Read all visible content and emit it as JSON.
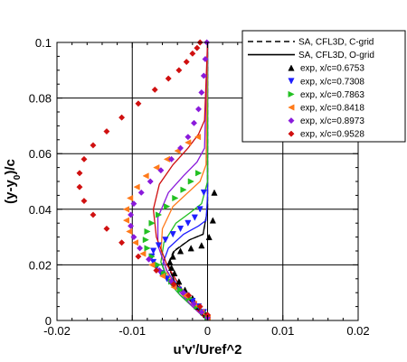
{
  "chart_data": {
    "type": "scatter",
    "title": "",
    "xlabel": "u'v'/Uref^2",
    "ylabel": "(y-y0)/c",
    "xlim": [
      -0.02,
      0.02
    ],
    "ylim": [
      0,
      0.1
    ],
    "x_ticks": [
      "-0.02",
      "-0.01",
      "0",
      "0.01",
      "0.02"
    ],
    "y_ticks": [
      "0",
      "0.02",
      "0.04",
      "0.06",
      "0.08",
      "0.1"
    ],
    "grid": true,
    "legend_position": "top-right",
    "curve_colors": [
      "#000000",
      "#1e1eff",
      "#22c022",
      "#ff7a1a",
      "#8a1adb",
      "#d01010"
    ],
    "legend": [
      {
        "label": "SA, CFL3D, C-grid",
        "style": "dashed",
        "color": "#000000"
      },
      {
        "label": "SA, CFL3D, O-grid",
        "style": "solid",
        "color": "#000000"
      },
      {
        "label": "exp, x/c=0.6753",
        "marker": "triangle-up",
        "color": "#000000"
      },
      {
        "label": "exp, x/c=0.7308",
        "marker": "triangle-down",
        "color": "#1e1eff"
      },
      {
        "label": "exp, x/c=0.7863",
        "marker": "triangle-right",
        "color": "#22c022"
      },
      {
        "label": "exp, x/c=0.8418",
        "marker": "triangle-left",
        "color": "#ff7a1a"
      },
      {
        "label": "exp, x/c=0.8973",
        "marker": "diamond",
        "color": "#8a1adb"
      },
      {
        "label": "exp, x/c=0.9528",
        "marker": "diamond",
        "color": "#d01010"
      }
    ],
    "series": [
      {
        "name": "exp, x/c=0.6753",
        "marker": "triangle-up",
        "color": "#000000",
        "x": [
          0,
          -0.0002,
          -0.0006,
          -0.0012,
          -0.002,
          -0.003,
          -0.0038,
          -0.0044,
          -0.0048,
          -0.005,
          -0.0046,
          -0.0036,
          -0.0022,
          -0.0008,
          0.0002,
          0.0007,
          0.0009
        ],
        "y": [
          0.001,
          0.002,
          0.003,
          0.005,
          0.008,
          0.011,
          0.014,
          0.017,
          0.019,
          0.021,
          0.023,
          0.025,
          0.026,
          0.027,
          0.03,
          0.036,
          0.046
        ]
      },
      {
        "name": "exp, x/c=0.7308",
        "marker": "triangle-down",
        "color": "#1e1eff",
        "x": [
          0,
          -0.0005,
          -0.0012,
          -0.002,
          -0.0028,
          -0.0038,
          -0.0046,
          -0.0054,
          -0.0062,
          -0.0068,
          -0.0072,
          -0.0074,
          -0.0072,
          -0.0065,
          -0.0056,
          -0.0046,
          -0.0036,
          -0.0026,
          -0.0017,
          -0.001,
          -0.0005
        ],
        "y": [
          0.001,
          0.003,
          0.005,
          0.007,
          0.009,
          0.011,
          0.013,
          0.015,
          0.017,
          0.019,
          0.021,
          0.023,
          0.025,
          0.027,
          0.029,
          0.031,
          0.033,
          0.035,
          0.037,
          0.04,
          0.046
        ]
      },
      {
        "name": "exp, x/c=0.7863",
        "marker": "triangle-right",
        "color": "#22c022",
        "x": [
          0,
          -0.0006,
          -0.0014,
          -0.0024,
          -0.0036,
          -0.0048,
          -0.0058,
          -0.0066,
          -0.0074,
          -0.008,
          -0.0082,
          -0.008,
          -0.0074,
          -0.0065,
          -0.0054,
          -0.0043,
          -0.0032,
          -0.0022,
          -0.0012
        ],
        "y": [
          0.001,
          0.003,
          0.005,
          0.008,
          0.011,
          0.014,
          0.017,
          0.02,
          0.023,
          0.026,
          0.029,
          0.032,
          0.035,
          0.038,
          0.041,
          0.044,
          0.047,
          0.05,
          0.053
        ]
      },
      {
        "name": "exp, x/c=0.8418",
        "marker": "triangle-left",
        "color": "#ff7a1a",
        "x": [
          0,
          -0.0008,
          -0.0018,
          -0.003,
          -0.0045,
          -0.006,
          -0.0074,
          -0.0086,
          -0.0096,
          -0.0104,
          -0.0108,
          -0.0108,
          -0.0103,
          -0.0094,
          -0.0082,
          -0.0068,
          -0.0054,
          -0.004,
          -0.0026,
          -0.0013
        ],
        "y": [
          0.001,
          0.003,
          0.006,
          0.009,
          0.012,
          0.016,
          0.02,
          0.024,
          0.028,
          0.032,
          0.036,
          0.04,
          0.044,
          0.048,
          0.052,
          0.055,
          0.058,
          0.061,
          0.064,
          0.066
        ]
      },
      {
        "name": "exp, x/c=0.8973",
        "marker": "diamond",
        "color": "#8a1adb",
        "x": [
          0,
          -0.0008,
          -0.0018,
          -0.0032,
          -0.0048,
          -0.0064,
          -0.0078,
          -0.009,
          -0.0098,
          -0.0102,
          -0.0102,
          -0.0098,
          -0.0088,
          -0.0076,
          -0.0062,
          -0.0048,
          -0.0036,
          -0.0026,
          -0.0018,
          -0.0012,
          -0.0008,
          -0.0005,
          -0.0003,
          -0.0001
        ],
        "y": [
          0.001,
          0.003,
          0.006,
          0.01,
          0.014,
          0.018,
          0.022,
          0.026,
          0.03,
          0.034,
          0.038,
          0.042,
          0.046,
          0.05,
          0.054,
          0.058,
          0.062,
          0.066,
          0.071,
          0.076,
          0.082,
          0.088,
          0.094,
          0.1
        ]
      },
      {
        "name": "exp, x/c=0.9528",
        "marker": "diamond",
        "color": "#d01010",
        "x": [
          0,
          -0.001,
          -0.0025,
          -0.0045,
          -0.0068,
          -0.0092,
          -0.0114,
          -0.0134,
          -0.0152,
          -0.0164,
          -0.017,
          -0.017,
          -0.0164,
          -0.0152,
          -0.0134,
          -0.0114,
          -0.0092,
          -0.007,
          -0.0052,
          -0.0038,
          -0.0028,
          -0.002,
          -0.0014,
          -0.001
        ],
        "y": [
          0.002,
          0.005,
          0.009,
          0.013,
          0.018,
          0.023,
          0.028,
          0.033,
          0.038,
          0.043,
          0.048,
          0.053,
          0.058,
          0.063,
          0.068,
          0.073,
          0.078,
          0.083,
          0.087,
          0.09,
          0.093,
          0.096,
          0.098,
          0.1
        ]
      }
    ],
    "lines": [
      {
        "name": "SA, CFL3D, O-grid, x/c=0.6753",
        "style": "solid",
        "color": "#000000",
        "x": [
          0,
          -0.0006,
          -0.0016,
          -0.003,
          -0.0044,
          -0.0052,
          -0.0044,
          -0.0024,
          -0.0006,
          0,
          0
        ],
        "y": [
          0,
          0.002,
          0.005,
          0.009,
          0.014,
          0.02,
          0.025,
          0.029,
          0.031,
          0.04,
          0.1
        ]
      },
      {
        "name": "SA, CFL3D, C-grid, x/c=0.6753",
        "style": "dashed",
        "color": "#000000",
        "x": [
          0,
          -0.0006,
          -0.0016,
          -0.003,
          -0.0044,
          -0.0053,
          -0.0045,
          -0.0024,
          -0.0006,
          0,
          0
        ],
        "y": [
          0,
          0.002,
          0.005,
          0.009,
          0.014,
          0.02,
          0.025,
          0.029,
          0.031,
          0.04,
          0.1
        ]
      },
      {
        "name": "SA, CFL3D, O-grid, x/c=0.7308",
        "style": "solid",
        "color": "#1e1eff",
        "x": [
          0,
          -0.0008,
          -0.002,
          -0.0036,
          -0.0052,
          -0.006,
          -0.0052,
          -0.0032,
          -0.0012,
          -0.0002,
          0,
          0
        ],
        "y": [
          0,
          0.002,
          0.005,
          0.009,
          0.014,
          0.02,
          0.026,
          0.031,
          0.034,
          0.036,
          0.045,
          0.1
        ]
      },
      {
        "name": "SA, CFL3D, O-grid, x/c=0.7863",
        "style": "solid",
        "color": "#22c022",
        "x": [
          0,
          -0.0008,
          -0.002,
          -0.0036,
          -0.0052,
          -0.0062,
          -0.0058,
          -0.0042,
          -0.0022,
          -0.0008,
          0,
          0
        ],
        "y": [
          0,
          0.002,
          0.005,
          0.009,
          0.014,
          0.021,
          0.028,
          0.035,
          0.039,
          0.042,
          0.05,
          0.1
        ]
      },
      {
        "name": "SA, CFL3D, O-grid, x/c=0.8418",
        "style": "solid",
        "color": "#ff7a1a",
        "x": [
          0,
          -0.0008,
          -0.002,
          -0.0036,
          -0.0052,
          -0.0062,
          -0.006,
          -0.0046,
          -0.0026,
          -0.001,
          -0.0002,
          0
        ],
        "y": [
          0,
          0.002,
          0.005,
          0.01,
          0.016,
          0.024,
          0.033,
          0.041,
          0.046,
          0.05,
          0.056,
          0.1
        ]
      },
      {
        "name": "SA, CFL3D, O-grid, x/c=0.8973",
        "style": "solid",
        "color": "#8a1adb",
        "x": [
          0,
          -0.0008,
          -0.002,
          -0.0036,
          -0.0054,
          -0.0066,
          -0.0066,
          -0.0052,
          -0.0032,
          -0.0014,
          -0.0004,
          0
        ],
        "y": [
          0,
          0.002,
          0.005,
          0.01,
          0.018,
          0.027,
          0.037,
          0.046,
          0.052,
          0.057,
          0.062,
          0.1
        ]
      },
      {
        "name": "SA, CFL3D, O-grid, x/c=0.9528",
        "style": "solid",
        "color": "#d01010",
        "x": [
          0,
          -0.0008,
          -0.002,
          -0.0036,
          -0.0054,
          -0.0068,
          -0.0072,
          -0.0064,
          -0.0046,
          -0.0026,
          -0.0012,
          -0.0004,
          0
        ],
        "y": [
          0,
          0.002,
          0.006,
          0.012,
          0.02,
          0.03,
          0.04,
          0.049,
          0.056,
          0.062,
          0.067,
          0.072,
          0.1
        ]
      }
    ]
  }
}
